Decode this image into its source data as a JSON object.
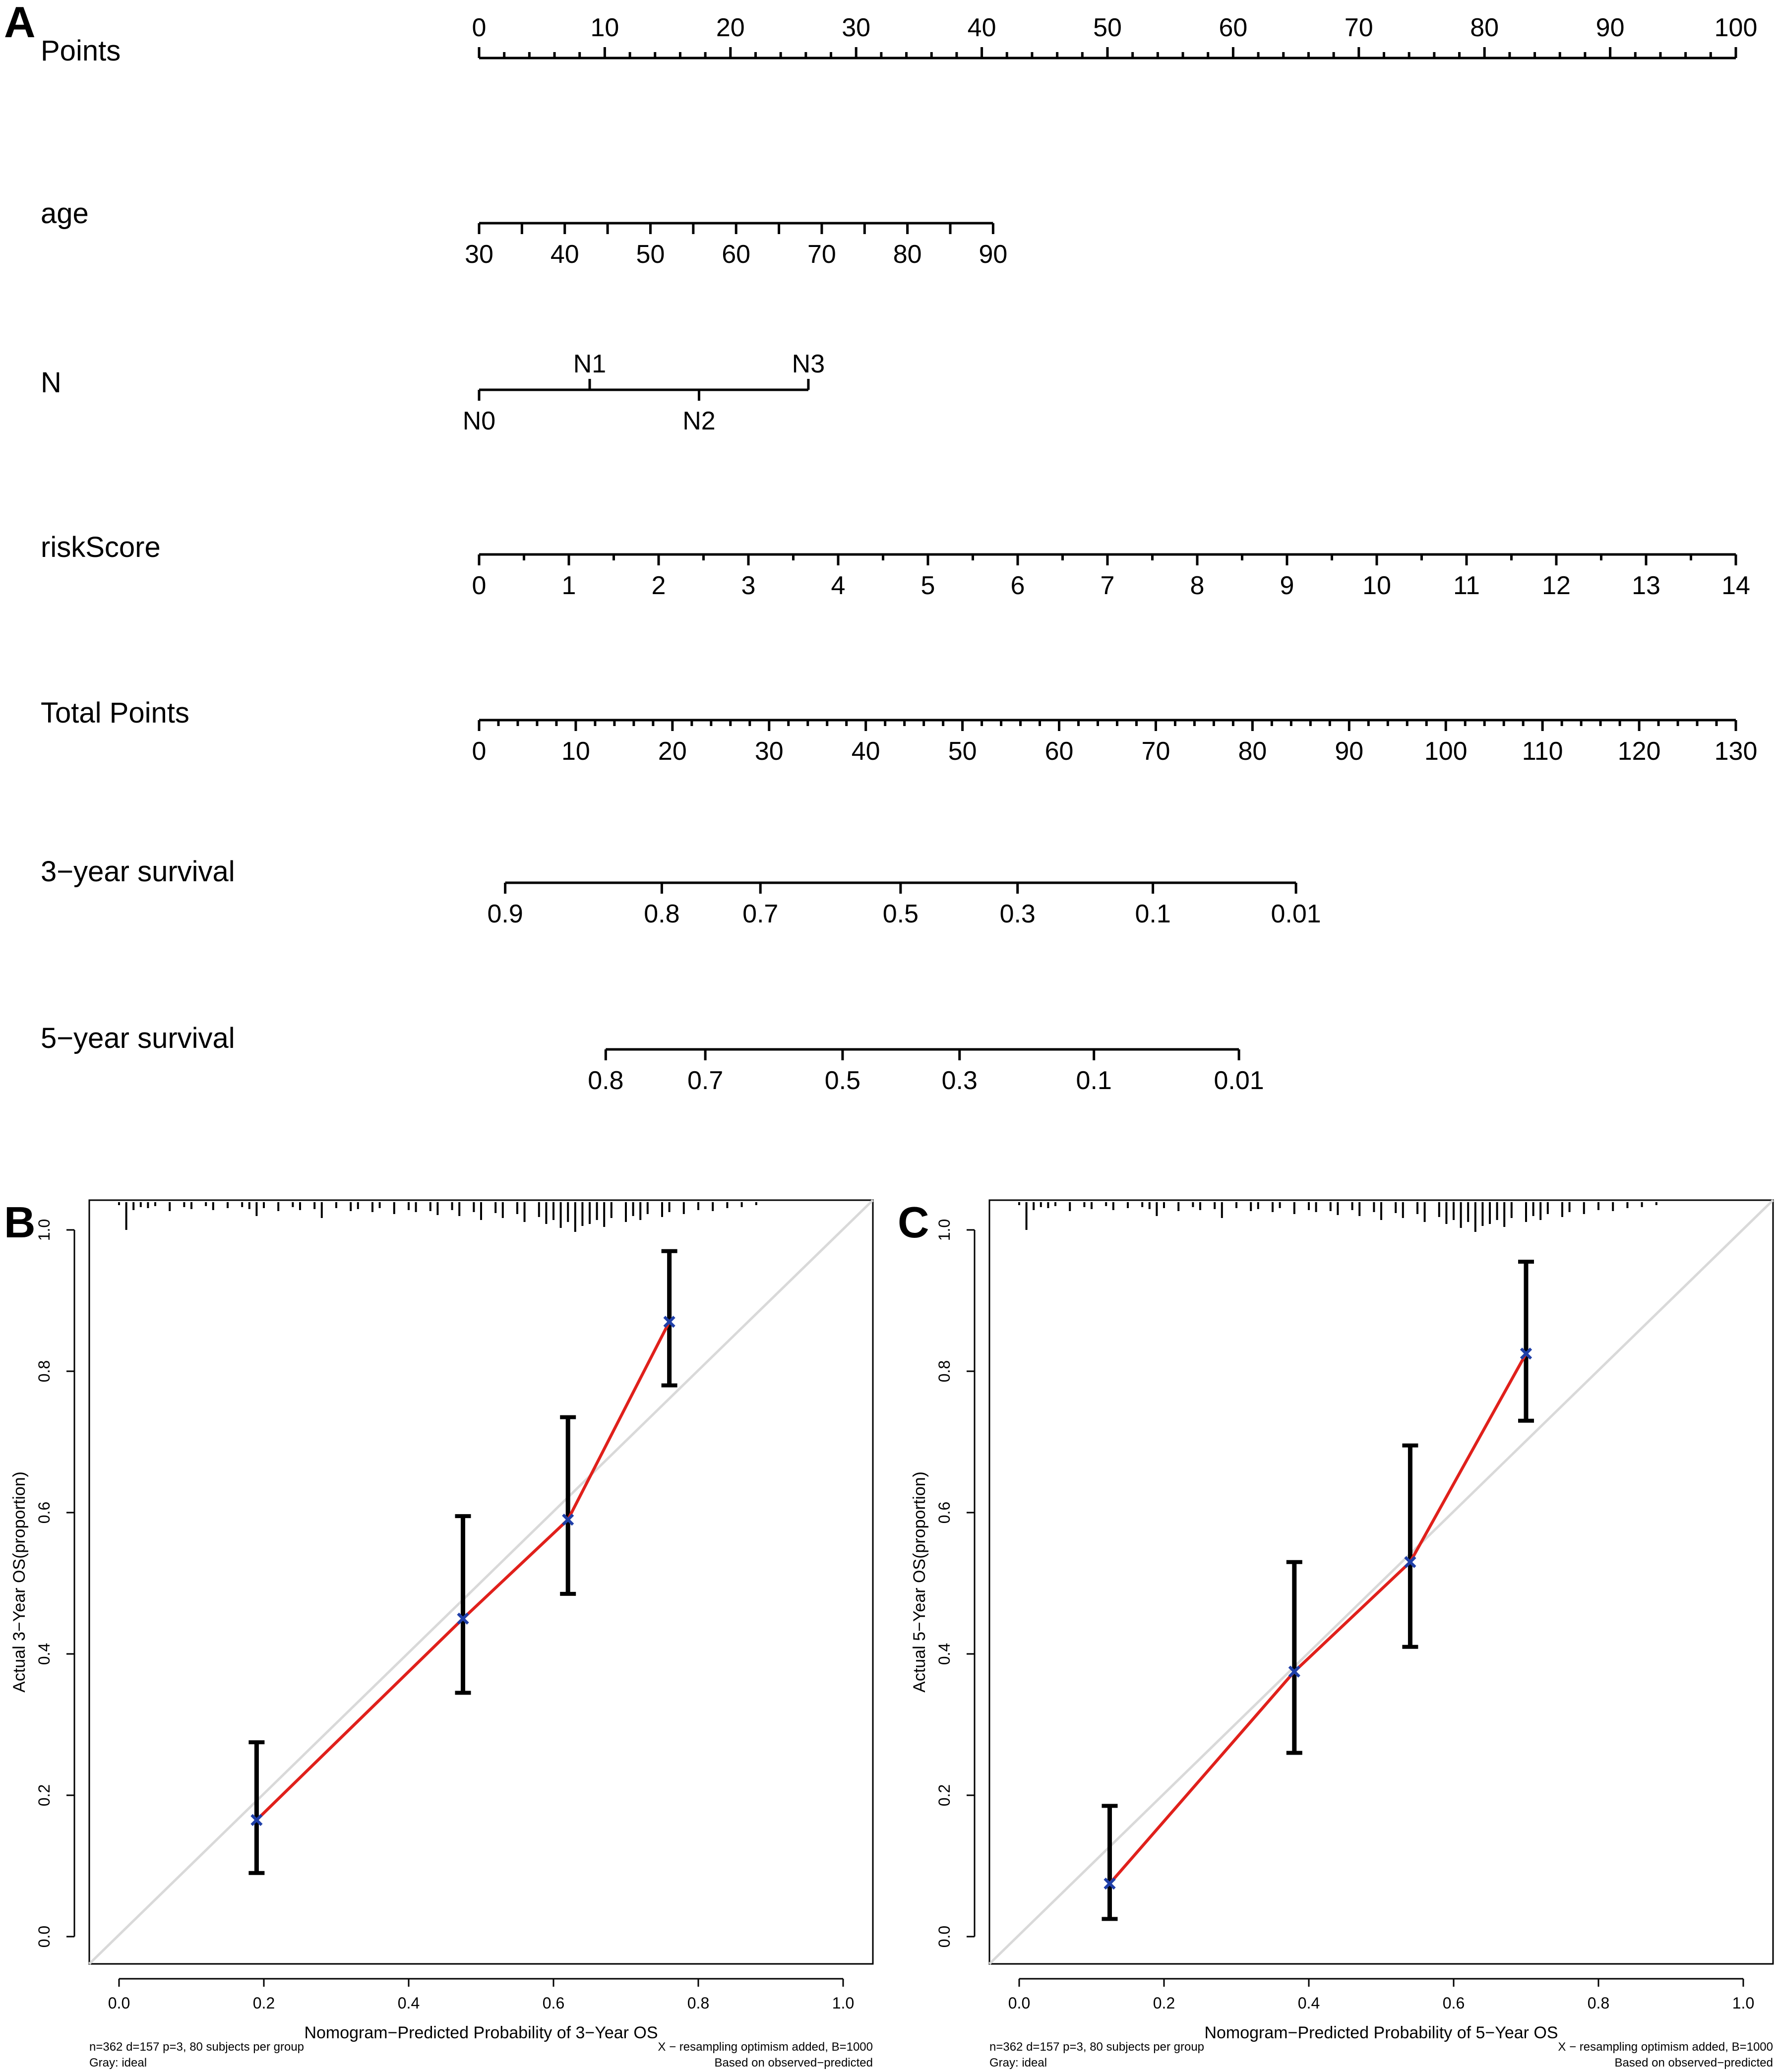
{
  "panels": {
    "A": "A",
    "B": "B",
    "C": "C"
  },
  "chart_data": [
    {
      "type": "nomogram",
      "panel": "A",
      "rows": [
        {
          "label": "Points",
          "min": 0,
          "max": 100,
          "ticks": [
            {
              "label": "0",
              "value": 0
            },
            {
              "label": "10",
              "value": 10
            },
            {
              "label": "20",
              "value": 20
            },
            {
              "label": "30",
              "value": 30
            },
            {
              "label": "40",
              "value": 40
            },
            {
              "label": "50",
              "value": 50
            },
            {
              "label": "60",
              "value": 60
            },
            {
              "label": "70",
              "value": 70
            },
            {
              "label": "80",
              "value": 80
            },
            {
              "label": "90",
              "value": 90
            },
            {
              "label": "100",
              "value": 100
            }
          ]
        },
        {
          "label": "age",
          "min": 30,
          "max": 90,
          "ticks": [
            {
              "label": "30",
              "value": 30
            },
            {
              "label": "40",
              "value": 40
            },
            {
              "label": "50",
              "value": 50
            },
            {
              "label": "60",
              "value": 60
            },
            {
              "label": "70",
              "value": 70
            },
            {
              "label": "80",
              "value": 80
            },
            {
              "label": "90",
              "value": 90
            }
          ]
        },
        {
          "label": "N",
          "levels": [
            {
              "label": "N0",
              "points": 0
            },
            {
              "label": "N1",
              "points": 8.8
            },
            {
              "label": "N2",
              "points": 17.5
            },
            {
              "label": "N3",
              "points": 26.2
            }
          ]
        },
        {
          "label": "riskScore",
          "min": 0,
          "max": 14,
          "ticks": [
            {
              "label": "0",
              "value": 0
            },
            {
              "label": "1",
              "value": 1
            },
            {
              "label": "2",
              "value": 2
            },
            {
              "label": "3",
              "value": 3
            },
            {
              "label": "4",
              "value": 4
            },
            {
              "label": "5",
              "value": 5
            },
            {
              "label": "6",
              "value": 6
            },
            {
              "label": "7",
              "value": 7
            },
            {
              "label": "8",
              "value": 8
            },
            {
              "label": "9",
              "value": 9
            },
            {
              "label": "10",
              "value": 10
            },
            {
              "label": "11",
              "value": 11
            },
            {
              "label": "12",
              "value": 12
            },
            {
              "label": "13",
              "value": 13
            },
            {
              "label": "14",
              "value": 14
            }
          ]
        },
        {
          "label": "Total Points",
          "min": 0,
          "max": 130,
          "ticks": [
            {
              "label": "0",
              "value": 0
            },
            {
              "label": "10",
              "value": 10
            },
            {
              "label": "20",
              "value": 20
            },
            {
              "label": "30",
              "value": 30
            },
            {
              "label": "40",
              "value": 40
            },
            {
              "label": "50",
              "value": 50
            },
            {
              "label": "60",
              "value": 60
            },
            {
              "label": "70",
              "value": 70
            },
            {
              "label": "80",
              "value": 80
            },
            {
              "label": "90",
              "value": 90
            },
            {
              "label": "100",
              "value": 100
            },
            {
              "label": "110",
              "value": 110
            },
            {
              "label": "120",
              "value": 120
            },
            {
              "label": "130",
              "value": 130
            }
          ]
        },
        {
          "label": "3−year survival",
          "ticks": [
            {
              "label": "0.9",
              "total_points": 2.7
            },
            {
              "label": "0.8",
              "total_points": 18.9
            },
            {
              "label": "0.7",
              "total_points": 29.1
            },
            {
              "label": "0.5",
              "total_points": 43.6
            },
            {
              "label": "0.3",
              "total_points": 55.7
            },
            {
              "label": "0.1",
              "total_points": 69.7
            },
            {
              "label": "0.01",
              "total_points": 84.5
            }
          ]
        },
        {
          "label": "5−year survival",
          "ticks": [
            {
              "label": "0.8",
              "total_points": 13.1
            },
            {
              "label": "0.7",
              "total_points": 23.4
            },
            {
              "label": "0.5",
              "total_points": 37.6
            },
            {
              "label": "0.3",
              "total_points": 49.7
            },
            {
              "label": "0.1",
              "total_points": 63.6
            },
            {
              "label": "0.01",
              "total_points": 78.6
            }
          ]
        }
      ]
    },
    {
      "type": "calibration",
      "panel": "B",
      "xlabel": "Nomogram−Predicted Probability of 3−Year OS",
      "ylabel": "Actual 3−Year OS(proportion)",
      "xlim": [
        0,
        1
      ],
      "ylim": [
        0,
        1
      ],
      "xticks": [
        "0.0",
        "0.2",
        "0.4",
        "0.6",
        "0.8",
        "1.0"
      ],
      "yticks": [
        "0.0",
        "0.2",
        "0.4",
        "0.6",
        "0.8",
        "1.0"
      ],
      "x": [
        0.19,
        0.475,
        0.62,
        0.76
      ],
      "y": [
        0.165,
        0.45,
        0.59,
        0.87
      ],
      "ci_low": [
        0.09,
        0.345,
        0.485,
        0.78
      ],
      "ci_high": [
        0.275,
        0.595,
        0.735,
        0.97
      ],
      "rug": [
        0.0,
        0.01,
        0.02,
        0.03,
        0.04,
        0.05,
        0.07,
        0.09,
        0.1,
        0.12,
        0.13,
        0.15,
        0.17,
        0.18,
        0.19,
        0.2,
        0.22,
        0.24,
        0.25,
        0.27,
        0.28,
        0.3,
        0.32,
        0.33,
        0.35,
        0.36,
        0.38,
        0.4,
        0.41,
        0.43,
        0.44,
        0.46,
        0.47,
        0.49,
        0.5,
        0.52,
        0.53,
        0.55,
        0.56,
        0.58,
        0.59,
        0.6,
        0.61,
        0.62,
        0.63,
        0.64,
        0.65,
        0.66,
        0.67,
        0.68,
        0.7,
        0.71,
        0.72,
        0.73,
        0.75,
        0.76,
        0.78,
        0.8,
        0.82,
        0.84,
        0.86,
        0.88
      ],
      "rug_heights": [
        3,
        28,
        8,
        5,
        6,
        4,
        9,
        5,
        7,
        4,
        8,
        6,
        5,
        7,
        14,
        6,
        9,
        5,
        8,
        7,
        16,
        6,
        9,
        7,
        10,
        6,
        12,
        8,
        10,
        9,
        13,
        8,
        14,
        10,
        18,
        11,
        16,
        12,
        20,
        15,
        22,
        18,
        26,
        20,
        30,
        24,
        22,
        18,
        25,
        16,
        20,
        14,
        18,
        12,
        15,
        10,
        12,
        8,
        9,
        6,
        5,
        3
      ],
      "footnote_left": [
        "n=362 d=157 p=3, 80 subjects per group",
        "Gray: ideal"
      ],
      "footnote_right": [
        "X − resampling optimism added, B=1000",
        "Based on observed−predicted"
      ]
    },
    {
      "type": "calibration",
      "panel": "C",
      "xlabel": "Nomogram−Predicted Probability of 5−Year OS",
      "ylabel": "Actual 5−Year OS(proportion)",
      "xlim": [
        0,
        1
      ],
      "ylim": [
        0,
        1
      ],
      "xticks": [
        "0.0",
        "0.2",
        "0.4",
        "0.6",
        "0.8",
        "1.0"
      ],
      "yticks": [
        "0.0",
        "0.2",
        "0.4",
        "0.6",
        "0.8",
        "1.0"
      ],
      "x": [
        0.125,
        0.38,
        0.54,
        0.7
      ],
      "y": [
        0.075,
        0.375,
        0.53,
        0.825
      ],
      "ci_low": [
        0.025,
        0.26,
        0.41,
        0.73
      ],
      "ci_high": [
        0.185,
        0.53,
        0.695,
        0.955
      ],
      "rug": [
        0.0,
        0.01,
        0.02,
        0.03,
        0.04,
        0.05,
        0.07,
        0.09,
        0.1,
        0.12,
        0.13,
        0.15,
        0.17,
        0.18,
        0.19,
        0.2,
        0.22,
        0.24,
        0.25,
        0.27,
        0.28,
        0.3,
        0.32,
        0.33,
        0.35,
        0.36,
        0.38,
        0.4,
        0.41,
        0.43,
        0.44,
        0.46,
        0.47,
        0.49,
        0.5,
        0.52,
        0.53,
        0.55,
        0.56,
        0.58,
        0.59,
        0.6,
        0.61,
        0.62,
        0.63,
        0.64,
        0.65,
        0.66,
        0.67,
        0.68,
        0.7,
        0.71,
        0.72,
        0.73,
        0.75,
        0.76,
        0.78,
        0.8,
        0.82,
        0.84,
        0.86,
        0.88
      ],
      "rug_heights": [
        3,
        28,
        8,
        5,
        6,
        4,
        9,
        5,
        7,
        4,
        8,
        6,
        5,
        7,
        14,
        6,
        9,
        5,
        8,
        7,
        16,
        6,
        9,
        7,
        10,
        6,
        12,
        8,
        10,
        9,
        13,
        8,
        14,
        10,
        18,
        11,
        16,
        12,
        20,
        15,
        22,
        18,
        26,
        20,
        30,
        24,
        22,
        18,
        25,
        16,
        20,
        14,
        18,
        12,
        15,
        10,
        12,
        8,
        9,
        6,
        5,
        3
      ],
      "footnote_left": [
        "n=362 d=157 p=3, 80 subjects per group",
        "Gray: ideal"
      ],
      "footnote_right": [
        "X − resampling optimism added, B=1000",
        "Based on observed−predicted"
      ]
    }
  ]
}
